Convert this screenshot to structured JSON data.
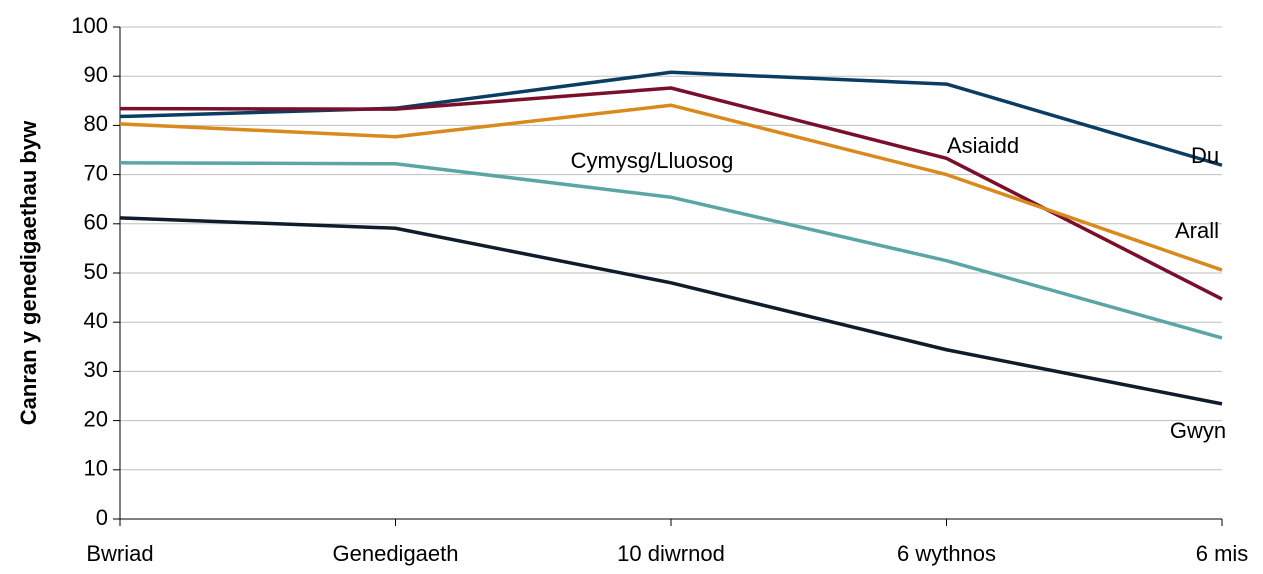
{
  "chart_data": {
    "type": "line",
    "y_label": "Canran y genedigaethau byw",
    "categories": [
      "Bwriad",
      "Genedigaeth",
      "10 diwrnod",
      "6 wythnos",
      "6 mis"
    ],
    "series": [
      {
        "name": "Du",
        "color": "#0b3d63",
        "values": [
          81.8,
          83.5,
          90.8,
          88.4,
          71.9
        ]
      },
      {
        "name": "Asiaidd",
        "color": "#7a0f2b",
        "values": [
          83.4,
          83.3,
          87.6,
          73.3,
          44.7
        ]
      },
      {
        "name": "Arall",
        "color": "#d98a1c",
        "values": [
          80.3,
          77.7,
          84.1,
          70.0,
          50.6
        ]
      },
      {
        "name": "Cymysg/Lluosog",
        "color": "#5ba6a5",
        "values": [
          72.4,
          72.2,
          65.4,
          52.5,
          36.8
        ]
      },
      {
        "name": "Gwyn",
        "color": "#0f1c2c",
        "values": [
          61.2,
          59.1,
          48.0,
          34.4,
          23.4
        ]
      }
    ],
    "ylim": [
      0,
      100
    ],
    "yticks": [
      0,
      10,
      20,
      30,
      40,
      50,
      60,
      70,
      80,
      90,
      100
    ],
    "grid": true
  }
}
